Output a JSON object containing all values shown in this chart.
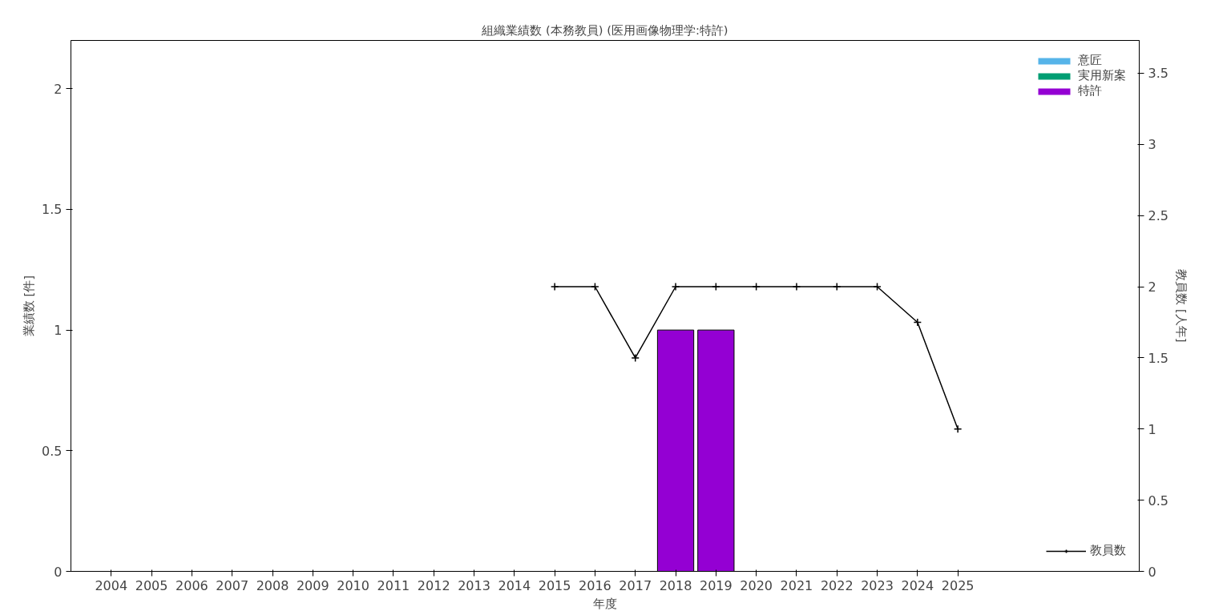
{
  "chart_data": {
    "type": "bar",
    "title": "組織業績数 (本務教員) (医用画像物理学:特許)",
    "xlabel": "年度",
    "ylabel": "業績数 [件]",
    "y2label": "教員数 [人年]",
    "x": [
      2004,
      2005,
      2006,
      2007,
      2008,
      2009,
      2010,
      2011,
      2012,
      2013,
      2014,
      2015,
      2016,
      2017,
      2018,
      2019,
      2020,
      2021,
      2022,
      2023,
      2024,
      2025
    ],
    "xlim": [
      2003,
      2029.5
    ],
    "xticks": [
      2004,
      2005,
      2006,
      2007,
      2008,
      2009,
      2010,
      2011,
      2012,
      2013,
      2014,
      2015,
      2016,
      2017,
      2018,
      2019,
      2020,
      2021,
      2022,
      2023,
      2024,
      2025
    ],
    "series": [
      {
        "name": "意匠",
        "color": "#56b4e9",
        "values": [
          0,
          0,
          0,
          0,
          0,
          0,
          0,
          0,
          0,
          0,
          0,
          0,
          0,
          0,
          0,
          0,
          0,
          0,
          0,
          0,
          0,
          0
        ]
      },
      {
        "name": "実用新案",
        "color": "#009e73",
        "values": [
          0,
          0,
          0,
          0,
          0,
          0,
          0,
          0,
          0,
          0,
          0,
          0,
          0,
          0,
          0,
          0,
          0,
          0,
          0,
          0,
          0,
          0
        ]
      },
      {
        "name": "特許",
        "color": "#9400d3",
        "values": [
          0,
          0,
          0,
          0,
          0,
          0,
          0,
          0,
          0,
          0,
          0,
          0,
          0,
          0,
          1,
          1,
          0,
          0,
          0,
          0,
          0,
          0
        ]
      },
      {
        "name": "教員数",
        "type": "line",
        "axis": "y2",
        "color": "#000000",
        "marker": "cross",
        "values": [
          null,
          null,
          null,
          null,
          null,
          null,
          null,
          null,
          null,
          null,
          null,
          2,
          2,
          1.5,
          2,
          2,
          2,
          2,
          2,
          2,
          1.75,
          1
        ]
      }
    ],
    "ylim": [
      0,
      2.2
    ],
    "yticks": [
      0,
      0.5,
      1,
      1.5,
      2
    ],
    "y2lim": [
      0,
      3.73
    ],
    "y2ticks": [
      0,
      0.5,
      1,
      1.5,
      2,
      2.5,
      3,
      3.5
    ],
    "grid": false,
    "legend": "top right"
  }
}
